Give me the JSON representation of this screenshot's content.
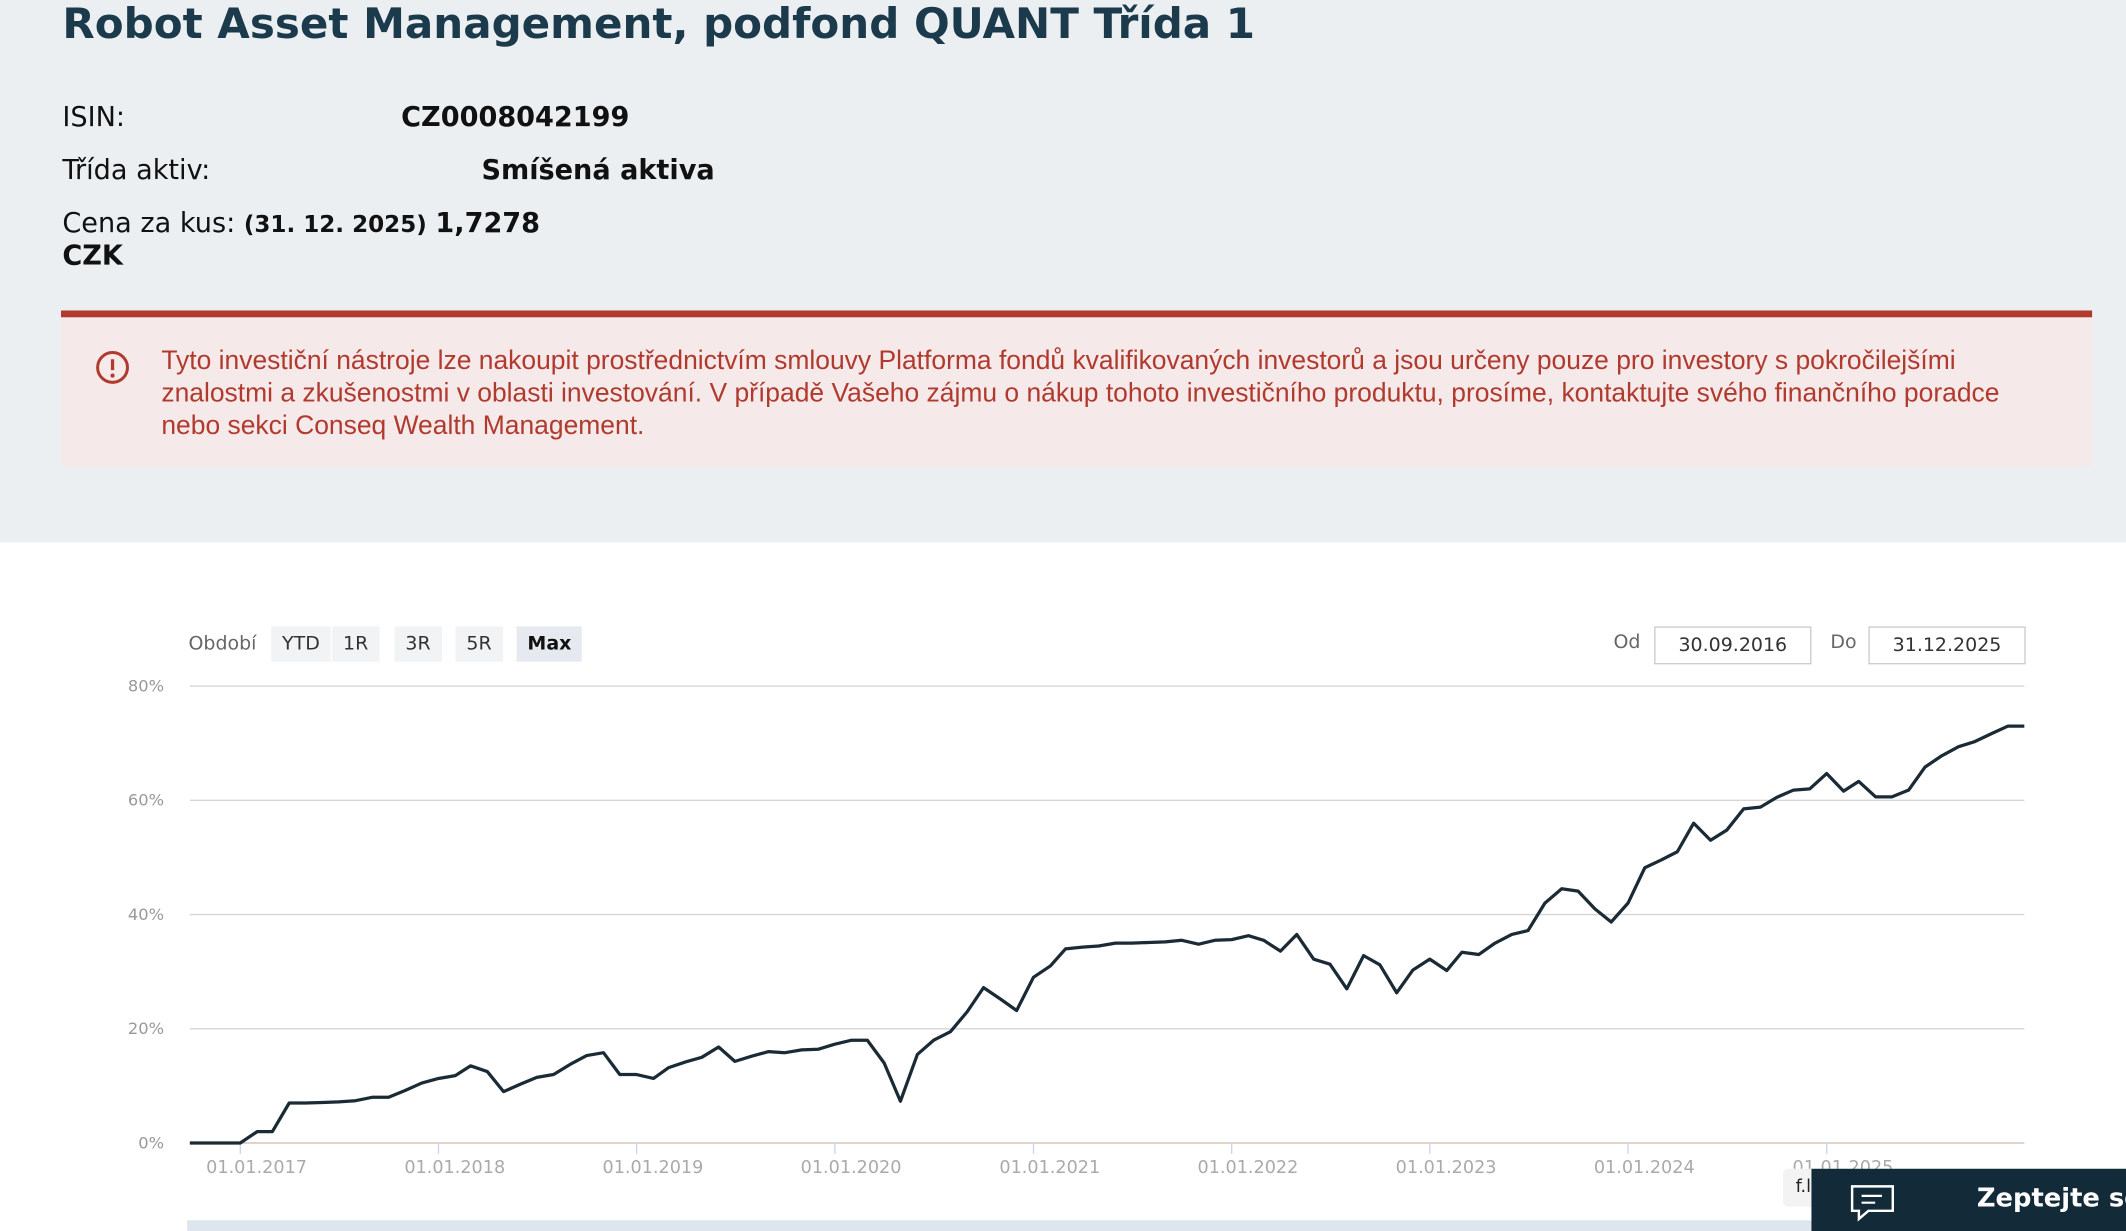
{
  "page": {
    "title": "Robot Asset Management, podfond QUANT Třída 1",
    "info": [
      {
        "label": "ISIN:",
        "value": "CZ0008042199"
      },
      {
        "label": "Třída aktiv:",
        "value": "Smíšená aktiva"
      },
      {
        "label": "Cena za kus:",
        "date": "(31. 12. 2025)",
        "value": "1,7278 CZK"
      }
    ],
    "warning": "Tyto investiční nástroje lze nakoupit prostřednictvím smlouvy Platforma fondů kvalifikovaných investorů a jsou určeny pouze pro investory s pokročilejšími znalostmi a zkušenostmi v oblasti investování. V případě Vašeho zájmu o nákup tohoto investičního produktu, prosíme, kontaktujte svého finančního poradce nebo sekci Conseq Wealth Management.",
    "period_label": "Období",
    "periods": [
      "YTD",
      "1R",
      "3R",
      "5R",
      "Max"
    ],
    "active_period": "Max",
    "from_label": "Od",
    "from": "30.09.2016",
    "to_label": "Do",
    "to": "31.12.2025",
    "flux": "f.lux",
    "chat": "Zeptejte se"
  },
  "chart_data": {
    "type": "line",
    "color": "#1b2b36",
    "grid": true,
    "x": [
      "2016-09-30",
      "2017-01-01",
      "2017-02-01",
      "2017-03-01",
      "2017-04-01",
      "2017-05-01",
      "2017-06-01",
      "2017-07-01",
      "2017-08-01",
      "2017-09-01",
      "2017-10-01",
      "2017-11-01",
      "2017-12-01",
      "2018-01-01",
      "2018-02-01",
      "2018-03-01",
      "2018-04-01",
      "2018-05-01",
      "2018-06-01",
      "2018-07-01",
      "2018-08-01",
      "2018-09-01",
      "2018-10-01",
      "2018-11-01",
      "2018-12-01",
      "2019-01-01",
      "2019-02-01",
      "2019-03-01",
      "2019-04-01",
      "2019-05-01",
      "2019-06-01",
      "2019-07-01",
      "2019-08-01",
      "2019-09-01",
      "2019-10-01",
      "2019-11-01",
      "2019-12-01",
      "2020-01-01",
      "2020-02-01",
      "2020-03-01",
      "2020-04-01",
      "2020-05-01",
      "2020-06-01",
      "2020-07-01",
      "2020-08-01",
      "2020-09-01",
      "2020-10-01",
      "2020-11-01",
      "2020-12-01",
      "2021-01-01",
      "2021-02-01",
      "2021-03-01",
      "2021-04-01",
      "2021-05-01",
      "2021-06-01",
      "2021-07-01",
      "2021-08-01",
      "2021-09-01",
      "2021-10-01",
      "2021-11-01",
      "2021-12-01",
      "2022-01-01",
      "2022-02-01",
      "2022-03-01",
      "2022-04-01",
      "2022-05-01",
      "2022-06-01",
      "2022-07-01",
      "2022-08-01",
      "2022-09-01",
      "2022-10-01",
      "2022-11-01",
      "2022-12-01",
      "2023-01-01",
      "2023-02-01",
      "2023-03-01",
      "2023-04-01",
      "2023-05-01",
      "2023-06-01",
      "2023-07-01",
      "2023-08-01",
      "2023-09-01",
      "2023-10-01",
      "2023-11-01",
      "2023-12-01",
      "2024-01-01",
      "2024-02-01",
      "2024-03-01",
      "2024-04-01",
      "2024-05-01",
      "2024-06-01",
      "2024-07-01",
      "2024-08-01",
      "2024-09-01",
      "2024-10-01",
      "2024-11-01",
      "2024-12-01",
      "2025-01-01",
      "2025-02-01",
      "2025-03-01",
      "2025-04-01",
      "2025-05-01",
      "2025-06-01",
      "2025-07-01",
      "2025-08-01",
      "2025-09-01",
      "2025-10-01",
      "2025-11-01",
      "2025-12-01",
      "2025-12-31"
    ],
    "values": [
      0,
      0,
      2,
      2,
      7,
      7,
      7.1,
      7.2,
      7.4,
      8,
      8,
      9.2,
      10.5,
      11.3,
      11.8,
      13.5,
      12.5,
      9,
      10.3,
      11.5,
      12,
      13.8,
      15.3,
      15.8,
      12,
      12,
      11.3,
      13.2,
      14.2,
      15,
      16.8,
      14.3,
      15.2,
      16,
      15.8,
      16.3,
      16.4,
      17.3,
      18,
      18,
      14,
      7.3,
      15.5,
      18,
      19.5,
      23,
      27.2,
      25.2,
      23.2,
      29,
      31,
      34,
      34.3,
      34.5,
      35,
      35,
      35.1,
      35.2,
      35.5,
      34.8,
      35.5,
      35.6,
      36.3,
      35.5,
      33.6,
      36.5,
      32.2,
      31.3,
      27,
      32.8,
      31.2,
      26.3,
      30.3,
      32.2,
      30.2,
      33.4,
      33,
      35,
      36.5,
      37.2,
      42,
      44.5,
      44.1,
      41,
      38.7,
      42,
      48.2,
      49.5,
      51,
      56,
      53,
      54.8,
      58.5,
      58.8,
      60.5,
      61.8,
      62,
      64.7,
      61.6,
      63.3,
      60.6,
      60.6,
      61.8,
      65.8,
      67.8,
      69.4,
      70.3,
      71.7,
      73,
      73
    ],
    "xlim": [
      "2016-09-30",
      "2025-12-31"
    ],
    "xticks": [
      {
        "value": "2017-01-01",
        "label": "01.01.2017"
      },
      {
        "value": "2018-01-01",
        "label": "01.01.2018"
      },
      {
        "value": "2019-01-01",
        "label": "01.01.2019"
      },
      {
        "value": "2020-01-01",
        "label": "01.01.2020"
      },
      {
        "value": "2021-01-01",
        "label": "01.01.2021"
      },
      {
        "value": "2022-01-01",
        "label": "01.01.2022"
      },
      {
        "value": "2023-01-01",
        "label": "01.01.2023"
      },
      {
        "value": "2024-01-01",
        "label": "01.01.2024"
      },
      {
        "value": "2025-01-01",
        "label": "01.01.2025"
      }
    ],
    "ylim": [
      0,
      80
    ],
    "yticks": [
      {
        "value": 0,
        "label": "0%"
      },
      {
        "value": 20,
        "label": "20%"
      },
      {
        "value": 40,
        "label": "40%"
      },
      {
        "value": 60,
        "label": "60%"
      },
      {
        "value": 80,
        "label": "80%"
      }
    ]
  }
}
